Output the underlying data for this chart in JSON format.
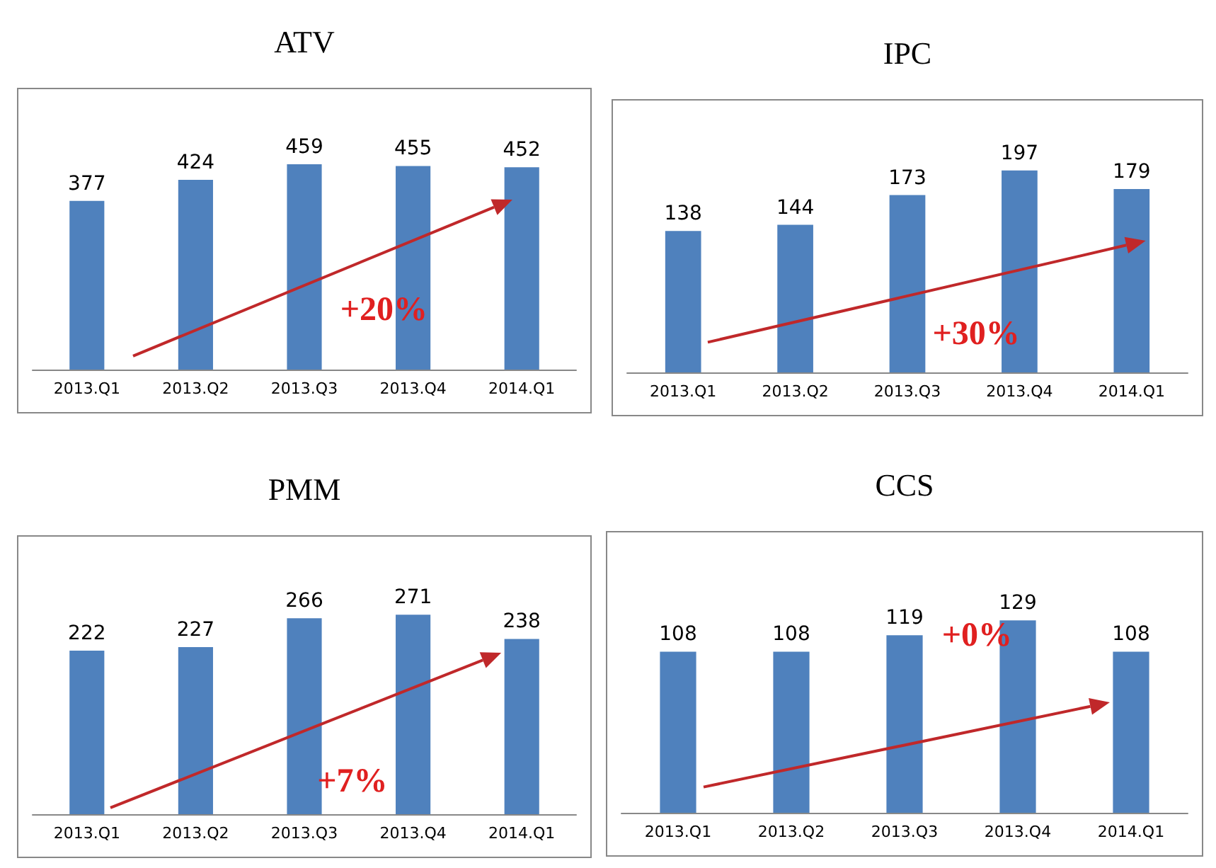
{
  "chart_data": [
    {
      "type": "bar",
      "title": "ATV",
      "categories": [
        "2013.Q1",
        "2013.Q2",
        "2013.Q3",
        "2013.Q4",
        "2014.Q1"
      ],
      "values": [
        377,
        424,
        459,
        455,
        452
      ],
      "color": "#4f81bd",
      "data_labels": true,
      "annotations": [
        "+20%"
      ]
    },
    {
      "type": "bar",
      "title": "IPC",
      "categories": [
        "2013.Q1",
        "2013.Q2",
        "2013.Q3",
        "2013.Q4",
        "2014.Q1"
      ],
      "values": [
        138,
        144,
        173,
        197,
        179
      ],
      "color": "#4f81bd",
      "data_labels": true,
      "annotations": [
        "+30%"
      ]
    },
    {
      "type": "bar",
      "title": "PMM",
      "categories": [
        "2013.Q1",
        "2013.Q2",
        "2013.Q3",
        "2013.Q4",
        "2014.Q1"
      ],
      "values": [
        222,
        227,
        266,
        271,
        238
      ],
      "color": "#4f81bd",
      "data_labels": true,
      "annotations": [
        "+7%"
      ]
    },
    {
      "type": "bar",
      "title": "CCS",
      "categories": [
        "2013.Q1",
        "2013.Q2",
        "2013.Q3",
        "2013.Q4",
        "2014.Q1"
      ],
      "values": [
        108,
        108,
        119,
        129,
        108
      ],
      "color": "#4f81bd",
      "data_labels": true,
      "annotations": [
        "+0%"
      ]
    }
  ]
}
